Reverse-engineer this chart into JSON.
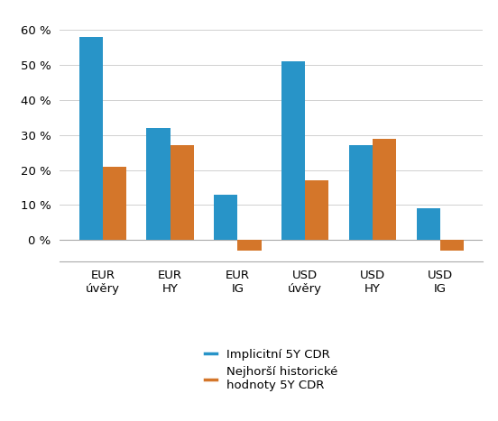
{
  "categories": [
    "EUR\núvěry",
    "EUR\nHY",
    "EUR\nIG",
    "USD\núvěry",
    "USD\nHY",
    "USD\nIG"
  ],
  "implicit_5y_cdr": [
    58,
    32,
    13,
    51,
    27,
    9
  ],
  "worst_historic_5y_cdr": [
    21,
    27,
    -3,
    17,
    29,
    -3
  ],
  "blue_color": "#2894c8",
  "orange_color": "#d4762a",
  "legend_label_blue": "Implicitní 5Y CDR",
  "legend_label_orange": "Nejhorší historické\nhodnoty 5Y CDR",
  "ylim": [
    -6,
    65
  ],
  "yticks": [
    0,
    10,
    20,
    30,
    40,
    50,
    60
  ],
  "background_color": "#ffffff",
  "grid_color": "#d0d0d0",
  "bar_width": 0.35
}
